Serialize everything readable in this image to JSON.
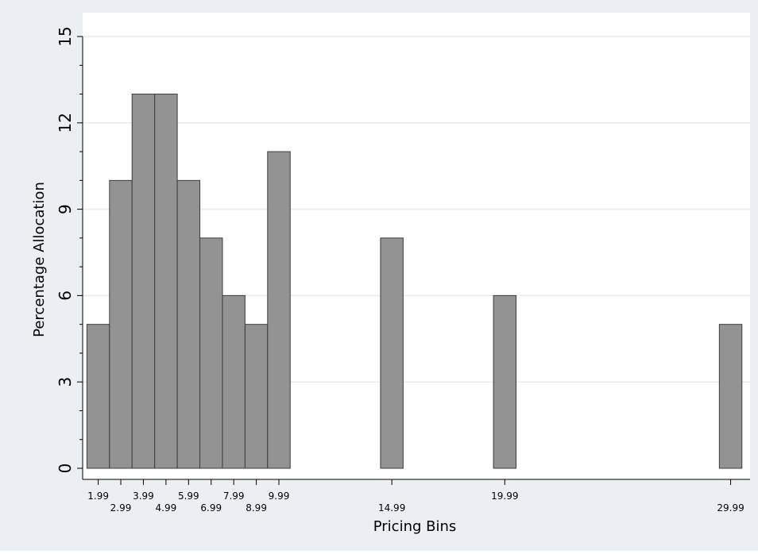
{
  "chart_data": {
    "type": "bar",
    "x": [
      1.99,
      2.99,
      3.99,
      4.99,
      5.99,
      6.99,
      7.99,
      8.99,
      9.99,
      14.99,
      19.99,
      29.99
    ],
    "x_tick_labels": [
      "1.99",
      "2.99",
      "3.99",
      "4.99",
      "5.99",
      "6.99",
      "7.99",
      "8.99",
      "9.99",
      "14.99",
      "19.99",
      "29.99"
    ],
    "values": [
      5,
      10,
      13,
      13,
      10,
      8,
      6,
      5,
      11,
      8,
      6,
      5
    ],
    "bar_width": 1,
    "title": "",
    "xlabel": "Pricing Bins",
    "ylabel": "Percentage Allocation",
    "xlim": [
      1.3,
      30.85
    ],
    "ylim": [
      0,
      15
    ],
    "yticks": [
      0,
      3,
      6,
      9,
      12,
      15
    ],
    "grid": "horizontal",
    "legend": "none",
    "colors": {
      "background": "#eaeff2",
      "plot_background": "#ffffff",
      "bar_fill": "#939393",
      "bar_stroke": "#3c3c3c",
      "grid": "#e4ecee",
      "axis": "#000000"
    }
  }
}
